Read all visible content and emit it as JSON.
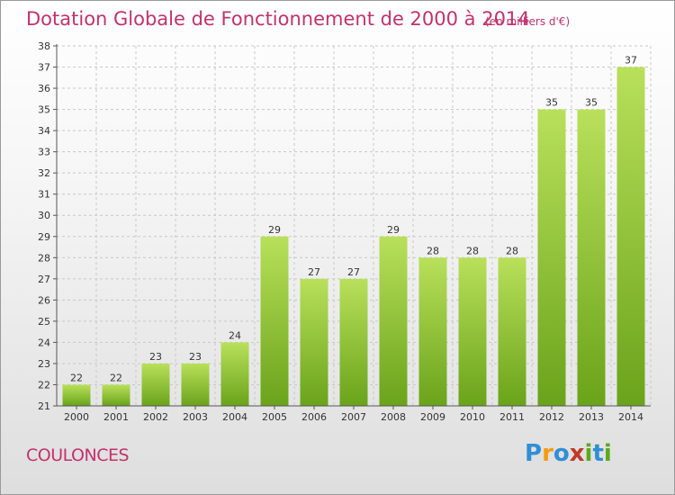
{
  "title": "Dotation Globale de Fonctionnement de 2000 à 2014",
  "subtitle": "(en milliers d'€)",
  "commune": "COULONCES",
  "logo": {
    "letters": [
      "P",
      "r",
      "o",
      "x",
      "i",
      "t",
      "i"
    ],
    "colors": [
      "#2f8fd6",
      "#f39c12",
      "#2f8fd6",
      "#c0392b",
      "#5aaa1c",
      "#2f8fd6",
      "#5aaa1c"
    ]
  },
  "colors": {
    "bar_light": "#b9e05a",
    "bar_dark": "#6aa31b",
    "text_accent": "#c4316d"
  },
  "chart_data": {
    "type": "bar",
    "categories": [
      "2000",
      "2001",
      "2002",
      "2003",
      "2004",
      "2005",
      "2006",
      "2007",
      "2008",
      "2009",
      "2010",
      "2011",
      "2012",
      "2013",
      "2014"
    ],
    "values": [
      22,
      22,
      23,
      23,
      24,
      29,
      27,
      27,
      29,
      28,
      28,
      28,
      35,
      35,
      37
    ],
    "ylim": [
      21,
      38
    ],
    "yticks": [
      21,
      22,
      23,
      24,
      25,
      26,
      27,
      28,
      29,
      30,
      31,
      32,
      33,
      34,
      35,
      36,
      37,
      38
    ],
    "grid": true
  }
}
